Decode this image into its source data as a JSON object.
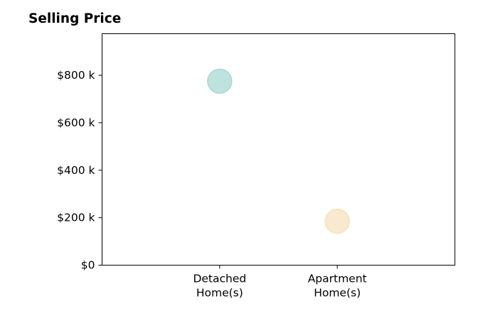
{
  "chart_data": {
    "type": "scatter",
    "title": "Selling Price",
    "xlabel": "",
    "ylabel": "",
    "categories": [
      [
        "Detached",
        "Home(s)"
      ],
      [
        "Apartment",
        "Home(s)"
      ]
    ],
    "x_range": [
      -1,
      2
    ],
    "values": [
      775000,
      185000
    ],
    "point_colors": [
      "#a8d8d3",
      "#f5e3bd"
    ],
    "ylim": [
      0,
      975000
    ],
    "yticks": [
      0,
      200000,
      400000,
      600000,
      800000
    ],
    "ytick_labels": [
      "$0",
      "$200 k",
      "$400 k",
      "$600 k",
      "$800 k"
    ],
    "grid": false,
    "legend": "none"
  }
}
